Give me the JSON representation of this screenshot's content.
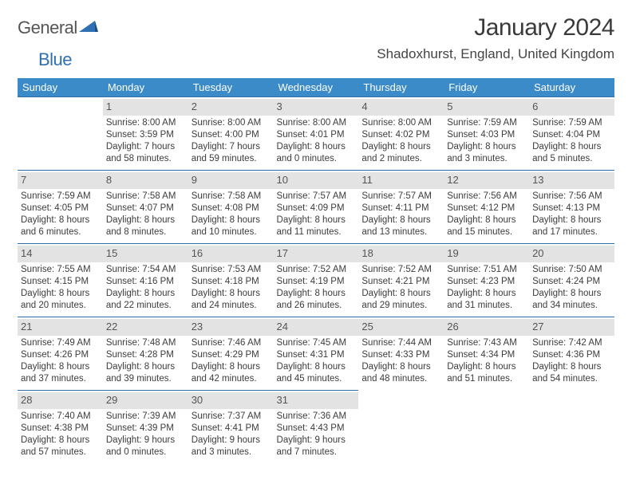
{
  "brand": {
    "part1": "General",
    "part2": "Blue"
  },
  "title": "January 2024",
  "location": "Shadoxhurst, England, United Kingdom",
  "header_bg": "#3b8bc9",
  "daybar_bg": "#e3e3e3",
  "rule_color": "#2d6ea8",
  "weekdays": [
    "Sunday",
    "Monday",
    "Tuesday",
    "Wednesday",
    "Thursday",
    "Friday",
    "Saturday"
  ],
  "weeks": [
    [
      {
        "n": "",
        "sr": "",
        "ss": "",
        "dl": ""
      },
      {
        "n": "1",
        "sr": "Sunrise: 8:00 AM",
        "ss": "Sunset: 3:59 PM",
        "dl": "Daylight: 7 hours and 58 minutes."
      },
      {
        "n": "2",
        "sr": "Sunrise: 8:00 AM",
        "ss": "Sunset: 4:00 PM",
        "dl": "Daylight: 7 hours and 59 minutes."
      },
      {
        "n": "3",
        "sr": "Sunrise: 8:00 AM",
        "ss": "Sunset: 4:01 PM",
        "dl": "Daylight: 8 hours and 0 minutes."
      },
      {
        "n": "4",
        "sr": "Sunrise: 8:00 AM",
        "ss": "Sunset: 4:02 PM",
        "dl": "Daylight: 8 hours and 2 minutes."
      },
      {
        "n": "5",
        "sr": "Sunrise: 7:59 AM",
        "ss": "Sunset: 4:03 PM",
        "dl": "Daylight: 8 hours and 3 minutes."
      },
      {
        "n": "6",
        "sr": "Sunrise: 7:59 AM",
        "ss": "Sunset: 4:04 PM",
        "dl": "Daylight: 8 hours and 5 minutes."
      }
    ],
    [
      {
        "n": "7",
        "sr": "Sunrise: 7:59 AM",
        "ss": "Sunset: 4:05 PM",
        "dl": "Daylight: 8 hours and 6 minutes."
      },
      {
        "n": "8",
        "sr": "Sunrise: 7:58 AM",
        "ss": "Sunset: 4:07 PM",
        "dl": "Daylight: 8 hours and 8 minutes."
      },
      {
        "n": "9",
        "sr": "Sunrise: 7:58 AM",
        "ss": "Sunset: 4:08 PM",
        "dl": "Daylight: 8 hours and 10 minutes."
      },
      {
        "n": "10",
        "sr": "Sunrise: 7:57 AM",
        "ss": "Sunset: 4:09 PM",
        "dl": "Daylight: 8 hours and 11 minutes."
      },
      {
        "n": "11",
        "sr": "Sunrise: 7:57 AM",
        "ss": "Sunset: 4:11 PM",
        "dl": "Daylight: 8 hours and 13 minutes."
      },
      {
        "n": "12",
        "sr": "Sunrise: 7:56 AM",
        "ss": "Sunset: 4:12 PM",
        "dl": "Daylight: 8 hours and 15 minutes."
      },
      {
        "n": "13",
        "sr": "Sunrise: 7:56 AM",
        "ss": "Sunset: 4:13 PM",
        "dl": "Daylight: 8 hours and 17 minutes."
      }
    ],
    [
      {
        "n": "14",
        "sr": "Sunrise: 7:55 AM",
        "ss": "Sunset: 4:15 PM",
        "dl": "Daylight: 8 hours and 20 minutes."
      },
      {
        "n": "15",
        "sr": "Sunrise: 7:54 AM",
        "ss": "Sunset: 4:16 PM",
        "dl": "Daylight: 8 hours and 22 minutes."
      },
      {
        "n": "16",
        "sr": "Sunrise: 7:53 AM",
        "ss": "Sunset: 4:18 PM",
        "dl": "Daylight: 8 hours and 24 minutes."
      },
      {
        "n": "17",
        "sr": "Sunrise: 7:52 AM",
        "ss": "Sunset: 4:19 PM",
        "dl": "Daylight: 8 hours and 26 minutes."
      },
      {
        "n": "18",
        "sr": "Sunrise: 7:52 AM",
        "ss": "Sunset: 4:21 PM",
        "dl": "Daylight: 8 hours and 29 minutes."
      },
      {
        "n": "19",
        "sr": "Sunrise: 7:51 AM",
        "ss": "Sunset: 4:23 PM",
        "dl": "Daylight: 8 hours and 31 minutes."
      },
      {
        "n": "20",
        "sr": "Sunrise: 7:50 AM",
        "ss": "Sunset: 4:24 PM",
        "dl": "Daylight: 8 hours and 34 minutes."
      }
    ],
    [
      {
        "n": "21",
        "sr": "Sunrise: 7:49 AM",
        "ss": "Sunset: 4:26 PM",
        "dl": "Daylight: 8 hours and 37 minutes."
      },
      {
        "n": "22",
        "sr": "Sunrise: 7:48 AM",
        "ss": "Sunset: 4:28 PM",
        "dl": "Daylight: 8 hours and 39 minutes."
      },
      {
        "n": "23",
        "sr": "Sunrise: 7:46 AM",
        "ss": "Sunset: 4:29 PM",
        "dl": "Daylight: 8 hours and 42 minutes."
      },
      {
        "n": "24",
        "sr": "Sunrise: 7:45 AM",
        "ss": "Sunset: 4:31 PM",
        "dl": "Daylight: 8 hours and 45 minutes."
      },
      {
        "n": "25",
        "sr": "Sunrise: 7:44 AM",
        "ss": "Sunset: 4:33 PM",
        "dl": "Daylight: 8 hours and 48 minutes."
      },
      {
        "n": "26",
        "sr": "Sunrise: 7:43 AM",
        "ss": "Sunset: 4:34 PM",
        "dl": "Daylight: 8 hours and 51 minutes."
      },
      {
        "n": "27",
        "sr": "Sunrise: 7:42 AM",
        "ss": "Sunset: 4:36 PM",
        "dl": "Daylight: 8 hours and 54 minutes."
      }
    ],
    [
      {
        "n": "28",
        "sr": "Sunrise: 7:40 AM",
        "ss": "Sunset: 4:38 PM",
        "dl": "Daylight: 8 hours and 57 minutes."
      },
      {
        "n": "29",
        "sr": "Sunrise: 7:39 AM",
        "ss": "Sunset: 4:39 PM",
        "dl": "Daylight: 9 hours and 0 minutes."
      },
      {
        "n": "30",
        "sr": "Sunrise: 7:37 AM",
        "ss": "Sunset: 4:41 PM",
        "dl": "Daylight: 9 hours and 3 minutes."
      },
      {
        "n": "31",
        "sr": "Sunrise: 7:36 AM",
        "ss": "Sunset: 4:43 PM",
        "dl": "Daylight: 9 hours and 7 minutes."
      },
      {
        "n": "",
        "sr": "",
        "ss": "",
        "dl": ""
      },
      {
        "n": "",
        "sr": "",
        "ss": "",
        "dl": ""
      },
      {
        "n": "",
        "sr": "",
        "ss": "",
        "dl": ""
      }
    ]
  ]
}
